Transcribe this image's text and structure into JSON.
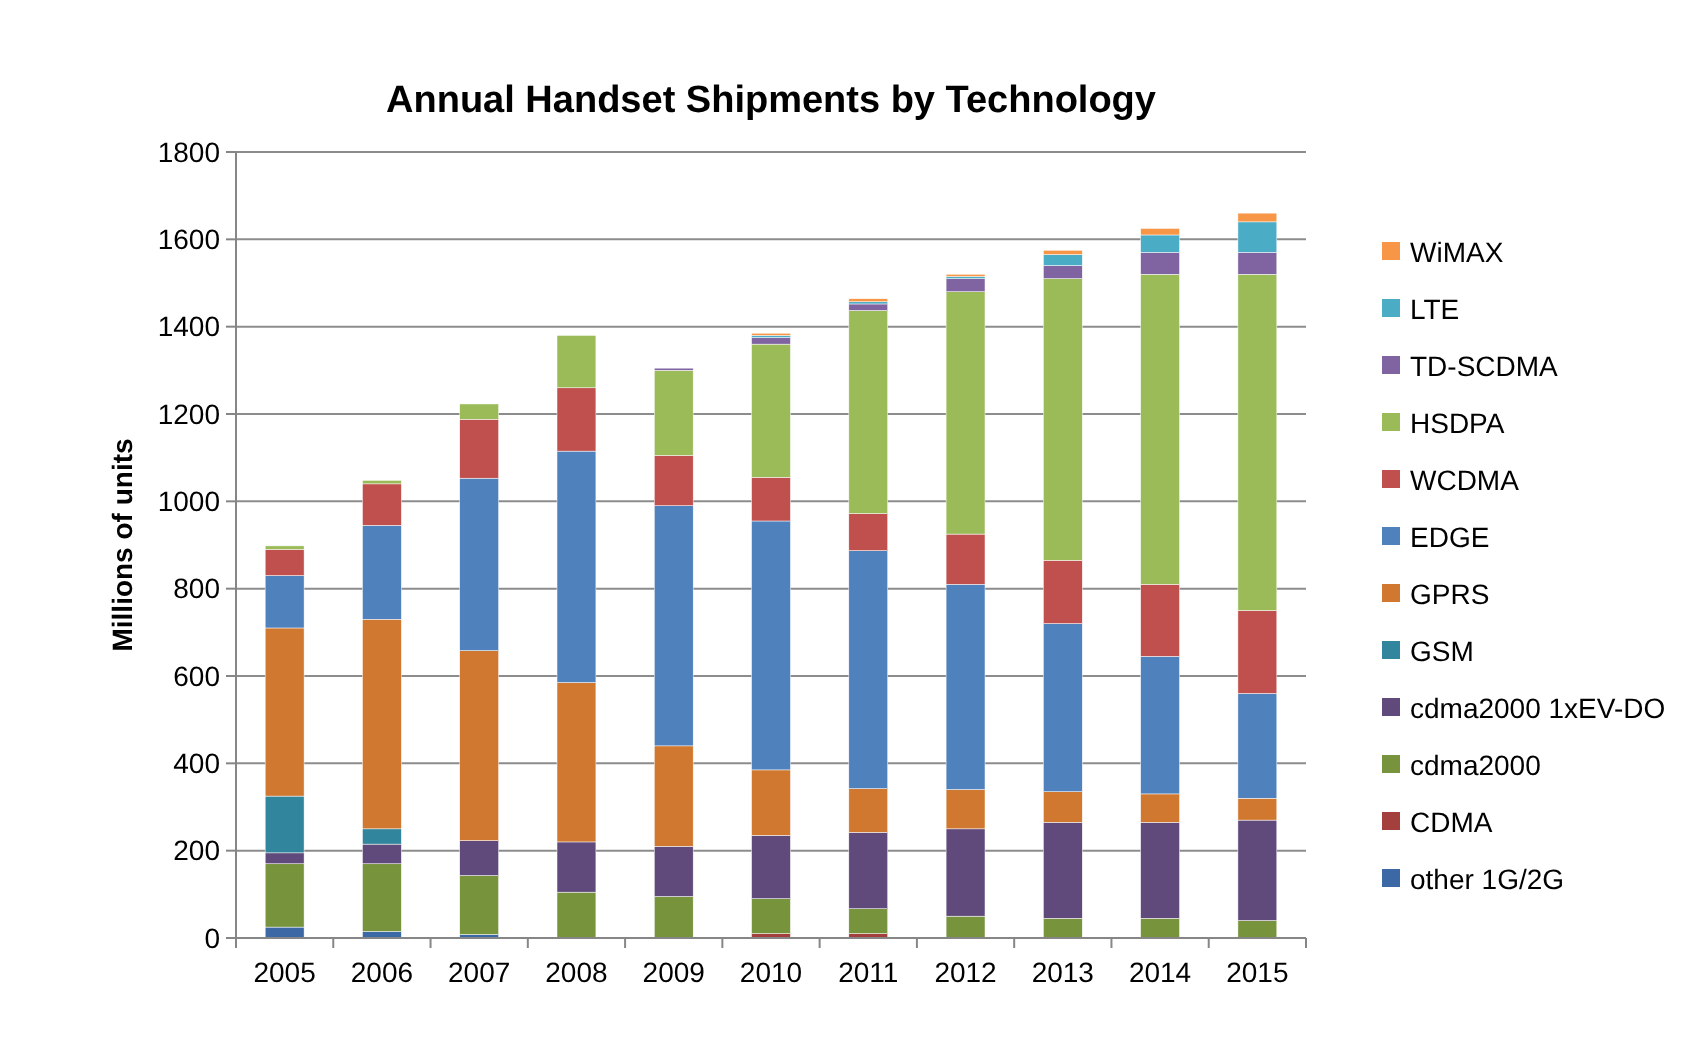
{
  "chart_data": {
    "type": "bar",
    "stacked": true,
    "title": "Annual Handset Shipments by Technology",
    "ylabel": "Millions of units",
    "categories": [
      "2005",
      "2006",
      "2007",
      "2008",
      "2009",
      "2010",
      "2011",
      "2012",
      "2013",
      "2014",
      "2015"
    ],
    "ylim": [
      0,
      1800
    ],
    "yticks": [
      0,
      200,
      400,
      600,
      800,
      1000,
      1200,
      1400,
      1600,
      1800
    ],
    "grid": "y",
    "legend": "right",
    "series": [
      {
        "name": "other 1G/2G",
        "color": "#3c68a6",
        "values": [
          25,
          15,
          8,
          0,
          0,
          0,
          0,
          0,
          0,
          0,
          0
        ]
      },
      {
        "name": "CDMA",
        "color": "#a33f3c",
        "values": [
          0,
          0,
          0,
          0,
          0,
          10,
          10,
          0,
          0,
          0,
          0
        ]
      },
      {
        "name": "cdma2000",
        "color": "#77933c",
        "values": [
          145,
          155,
          135,
          105,
          95,
          80,
          57,
          50,
          45,
          45,
          40
        ]
      },
      {
        "name": "cdma2000 1xEV-DO",
        "color": "#604a7b",
        "values": [
          25,
          45,
          80,
          115,
          115,
          145,
          175,
          200,
          220,
          220,
          230
        ]
      },
      {
        "name": "GSM",
        "color": "#31859c",
        "values": [
          130,
          35,
          0,
          0,
          0,
          0,
          0,
          0,
          0,
          0,
          0
        ]
      },
      {
        "name": "GPRS",
        "color": "#d0782f",
        "values": [
          385,
          480,
          435,
          365,
          230,
          150,
          100,
          90,
          70,
          65,
          50
        ]
      },
      {
        "name": "EDGE",
        "color": "#4f81bd",
        "values": [
          120,
          215,
          395,
          530,
          550,
          570,
          545,
          470,
          385,
          315,
          240
        ]
      },
      {
        "name": "WCDMA",
        "color": "#c0504d",
        "values": [
          60,
          95,
          135,
          145,
          115,
          100,
          85,
          115,
          145,
          165,
          190
        ]
      },
      {
        "name": "HSDPA",
        "color": "#9bbb59",
        "values": [
          8,
          8,
          35,
          120,
          195,
          305,
          465,
          555,
          645,
          710,
          770
        ]
      },
      {
        "name": "TD-SCDMA",
        "color": "#8064a2",
        "values": [
          0,
          0,
          0,
          0,
          5,
          15,
          15,
          30,
          30,
          50,
          50
        ]
      },
      {
        "name": "LTE",
        "color": "#4bacc6",
        "values": [
          0,
          0,
          0,
          0,
          0,
          5,
          5,
          5,
          25,
          40,
          70
        ]
      },
      {
        "name": "WiMAX",
        "color": "#f79646",
        "values": [
          0,
          0,
          0,
          0,
          0,
          5,
          7,
          5,
          10,
          15,
          20
        ]
      }
    ]
  }
}
